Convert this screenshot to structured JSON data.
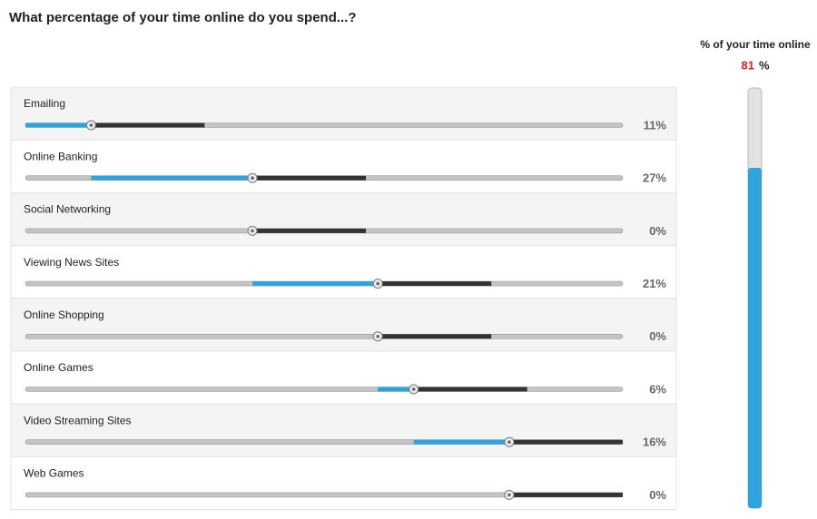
{
  "title": "What percentage of your time online do you spend...?",
  "total": {
    "label": "% of your time online",
    "value": 81,
    "unit": "%"
  },
  "rows": [
    {
      "label": "Emailing",
      "value": 11,
      "value_label": "11%"
    },
    {
      "label": "Online Banking",
      "value": 27,
      "value_label": "27%"
    },
    {
      "label": "Social Networking",
      "value": 0,
      "value_label": "0%"
    },
    {
      "label": "Viewing News Sites",
      "value": 21,
      "value_label": "21%"
    },
    {
      "label": "Online Shopping",
      "value": 0,
      "value_label": "0%"
    },
    {
      "label": "Online Games",
      "value": 6,
      "value_label": "6%"
    },
    {
      "label": "Video Streaming Sites",
      "value": 16,
      "value_label": "16%"
    },
    {
      "label": "Web Games",
      "value": 0,
      "value_label": "0%"
    }
  ]
}
